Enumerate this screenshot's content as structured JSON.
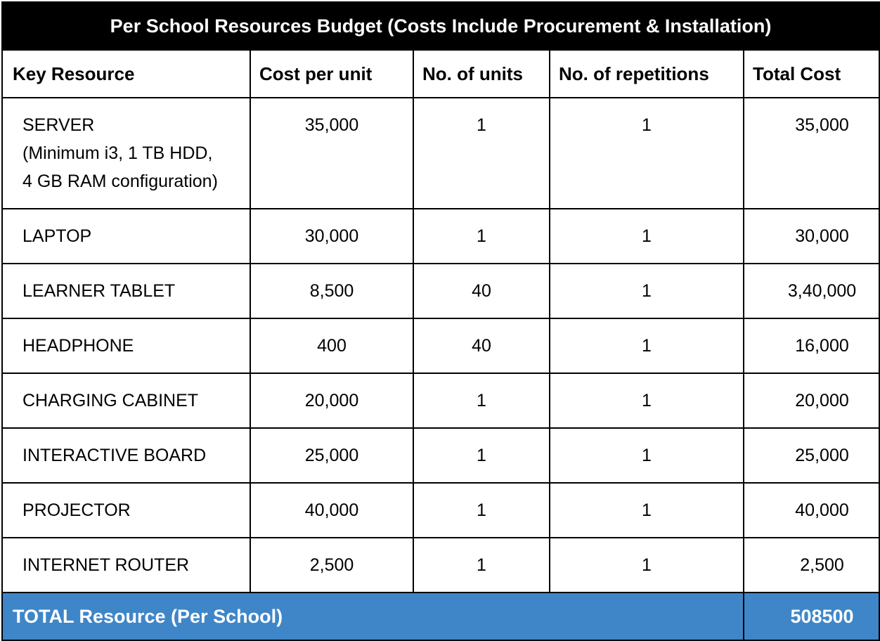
{
  "table": {
    "title": "Per School Resources Budget (Costs Include Procurement & Installation)",
    "headers": {
      "resource": "Key Resource",
      "cost": "Cost per unit",
      "units": "No. of units",
      "reps": "No. of repetitions",
      "total": "Total Cost"
    },
    "rows": [
      {
        "resource_lines": [
          "SERVER",
          "(Minimum i3, 1 TB HDD,",
          "4 GB RAM configuration)"
        ],
        "cost": "35,000",
        "units": "1",
        "reps": "1",
        "total": "35,000"
      },
      {
        "resource": "LAPTOP",
        "cost": "30,000",
        "units": "1",
        "reps": "1",
        "total": "30,000"
      },
      {
        "resource": "LEARNER TABLET",
        "cost": "8,500",
        "units": "40",
        "reps": "1",
        "total": "3,40,000"
      },
      {
        "resource": "HEADPHONE",
        "cost": "400",
        "units": "40",
        "reps": "1",
        "total": "16,000"
      },
      {
        "resource": "CHARGING CABINET",
        "cost": "20,000",
        "units": "1",
        "reps": "1",
        "total": "20,000"
      },
      {
        "resource": "INTERACTIVE BOARD",
        "cost": "25,000",
        "units": "1",
        "reps": "1",
        "total": "25,000"
      },
      {
        "resource": "PROJECTOR",
        "cost": "40,000",
        "units": "1",
        "reps": "1",
        "total": "40,000"
      },
      {
        "resource": "INTERNET ROUTER",
        "cost": "2,500",
        "units": "1",
        "reps": "1",
        "total": "2,500"
      }
    ],
    "footer": {
      "label": "TOTAL Resource (Per School)",
      "value": "508500"
    }
  },
  "colors": {
    "title_bg": "#000000",
    "footer_bg": "#3f86c8",
    "border": "#000000"
  }
}
